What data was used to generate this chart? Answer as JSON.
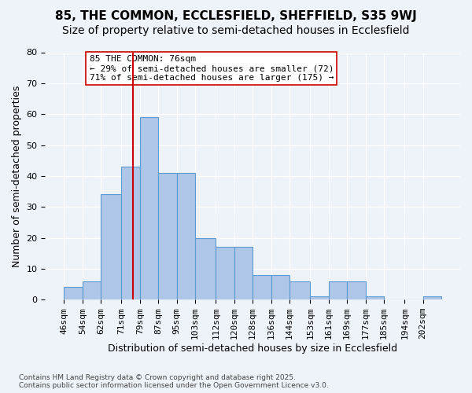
{
  "title1": "85, THE COMMON, ECCLESFIELD, SHEFFIELD, S35 9WJ",
  "title2": "Size of property relative to semi-detached houses in Ecclesfield",
  "xlabel": "Distribution of semi-detached houses by size in Ecclesfield",
  "ylabel": "Number of semi-detached properties",
  "footnote": "Contains HM Land Registry data © Crown copyright and database right 2025.\nContains public sector information licensed under the Open Government Licence v3.0.",
  "bins": [
    46,
    54,
    62,
    71,
    79,
    87,
    95,
    103,
    112,
    120,
    128,
    136,
    144,
    153,
    161,
    169,
    177,
    185,
    194,
    202,
    210
  ],
  "counts": [
    4,
    6,
    34,
    43,
    59,
    41,
    41,
    20,
    17,
    17,
    8,
    8,
    6,
    1,
    6,
    6,
    1,
    0,
    0,
    1
  ],
  "bar_color": "#aec6e8",
  "bar_edge_color": "#5b9bd5",
  "property_value": 76,
  "vline_color": "#cc0000",
  "annotation_text": "85 THE COMMON: 76sqm\n← 29% of semi-detached houses are smaller (72)\n71% of semi-detached houses are larger (175) →",
  "annotation_box_color": "white",
  "annotation_box_edge_color": "#cc0000",
  "ylim": [
    0,
    80
  ],
  "yticks": [
    0,
    10,
    20,
    30,
    40,
    50,
    60,
    70,
    80
  ],
  "bg_color": "#eef2f9",
  "grid_color": "white",
  "title1_fontsize": 11,
  "title2_fontsize": 10,
  "tick_labelsize": 8,
  "annot_fontsize": 8.0,
  "xlabel_fontsize": 9,
  "ylabel_fontsize": 9
}
